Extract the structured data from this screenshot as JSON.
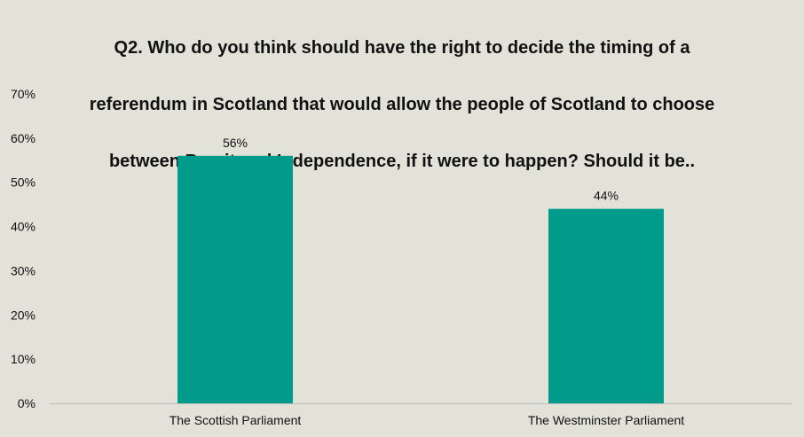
{
  "chart_data": {
    "type": "bar",
    "title_lines": [
      "Q2. Who do you think should have the right to decide the timing of a",
      "referendum in Scotland that would allow the people of Scotland to choose",
      "between Brexit and Independence, if it were to happen? Should it be.."
    ],
    "categories": [
      "The Scottish Parliament",
      "The Westminster Parliament"
    ],
    "values": [
      56,
      44
    ],
    "data_labels": [
      "56%",
      "44%"
    ],
    "ylim": [
      0,
      70
    ],
    "yticks": [
      0,
      10,
      20,
      30,
      40,
      50,
      60,
      70
    ],
    "ytick_labels": [
      "0%",
      "10%",
      "20%",
      "30%",
      "40%",
      "50%",
      "60%",
      "70%"
    ],
    "xlabel": "",
    "ylabel": "",
    "grid": false,
    "legend": "none",
    "bar_color": "#009b8a",
    "axis_color": "#bcbcbc",
    "background_color": "#e2e2d9"
  }
}
